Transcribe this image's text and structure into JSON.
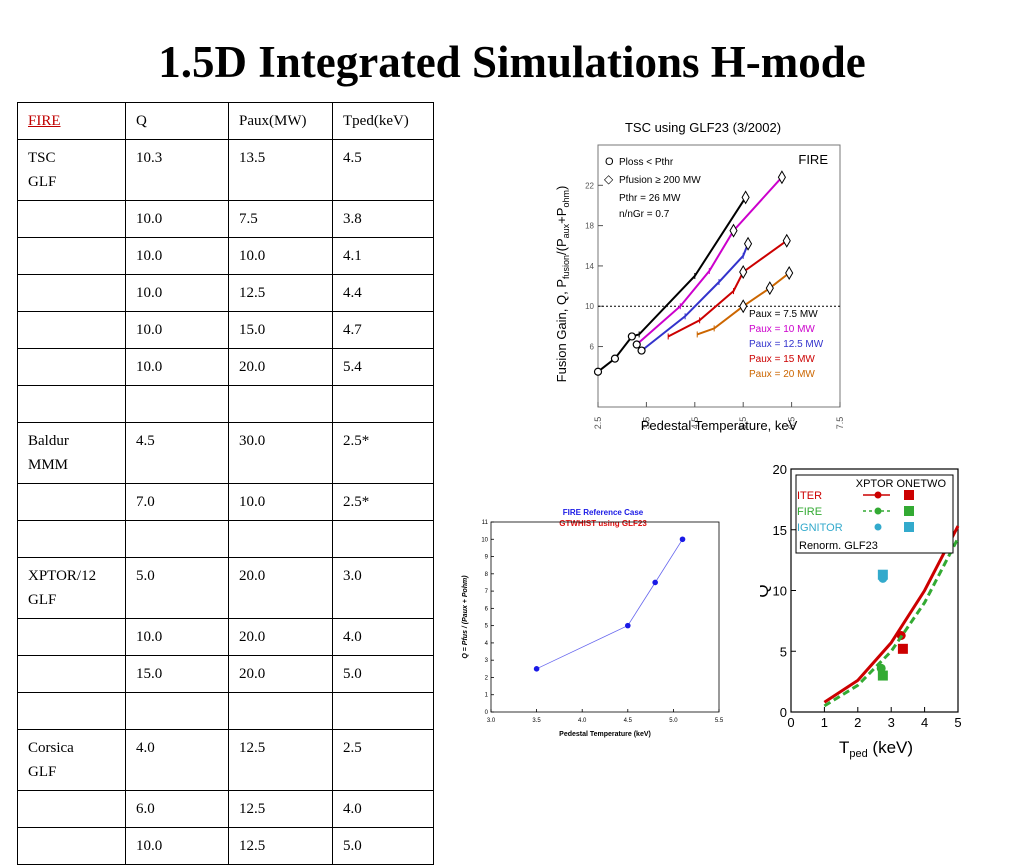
{
  "slide": {
    "title": "1.5D Integrated Simulations H-mode"
  },
  "table": {
    "headers": [
      "FIRE",
      "Q",
      "Paux(MW)",
      "Tped(keV)"
    ],
    "rows": [
      [
        [
          "TSC",
          "GLF"
        ],
        "10.3",
        "13.5",
        "4.5"
      ],
      [
        "",
        "10.0",
        "7.5",
        "3.8"
      ],
      [
        "",
        "10.0",
        "10.0",
        "4.1"
      ],
      [
        "",
        "10.0",
        "12.5",
        "4.4"
      ],
      [
        "",
        "10.0",
        "15.0",
        "4.7"
      ],
      [
        "",
        "10.0",
        "20.0",
        "5.4"
      ],
      [
        "",
        "",
        "",
        ""
      ],
      [
        [
          "Baldur",
          "MMM"
        ],
        "4.5",
        "30.0",
        "2.5*"
      ],
      [
        "",
        "7.0",
        "10.0",
        "2.5*"
      ],
      [
        "",
        "",
        "",
        ""
      ],
      [
        [
          "XPTOR/12",
          "GLF"
        ],
        "5.0",
        "20.0",
        "3.0"
      ],
      [
        "",
        "10.0",
        "20.0",
        "4.0"
      ],
      [
        "",
        "15.0",
        "20.0",
        "5.0"
      ],
      [
        "",
        "",
        "",
        ""
      ],
      [
        [
          "Corsica",
          "GLF"
        ],
        "4.0",
        "12.5",
        "2.5"
      ],
      [
        "",
        "6.0",
        "12.5",
        "4.0"
      ],
      [
        "",
        "10.0",
        "12.5",
        "5.0"
      ]
    ]
  },
  "chart_data": [
    {
      "type": "line",
      "title": "TSC using GLF23 (3/2002)",
      "xlabel": "Pedestal Temperature, keV",
      "ylabel": "Fusion Gain, Q, Pfusion/(Paux+Pohm)",
      "ylabel_parts": {
        "main": "Fusion Gain, Q, P",
        "s1": "fusion",
        "mid": "/(P",
        "s2": "aux",
        "plus": "+P",
        "s3": "ohm",
        "end": ")"
      },
      "xlim": [
        2.5,
        7.5
      ],
      "ylim": [
        0,
        26
      ],
      "xticks": [
        2.5,
        3.5,
        4.5,
        5.5,
        6.5,
        7.5
      ],
      "xtick_labels": [
        "2.5",
        "3.5",
        "4.5",
        "5.5",
        "6.5",
        "7.5"
      ],
      "yticks": [
        6,
        10,
        14,
        18,
        22
      ],
      "ytick_labels": [
        "6",
        "10",
        "14",
        "18",
        "22"
      ],
      "reference_line": 10,
      "device_label": "FIRE",
      "annotations": [
        "Ploss < Pthr",
        "Pfusion ≥ 200 MW",
        "Pthr = 26 MW",
        "n/nGr = 0.7"
      ],
      "legend_symbols": [
        "O",
        "◇"
      ],
      "legend_position": "right",
      "series": [
        {
          "name": "Paux = 7.5 MW",
          "color": "#000000",
          "x": [
            2.5,
            2.85,
            3.2,
            3.35,
            4.5,
            5.55
          ],
          "y": [
            3.5,
            4.8,
            7.0,
            7.2,
            13.0,
            20.8
          ],
          "circles": [
            [
              2.5,
              3.5
            ],
            [
              2.85,
              4.8
            ],
            [
              3.2,
              7.0
            ]
          ],
          "diamonds": [
            [
              5.55,
              20.8
            ]
          ]
        },
        {
          "name": "Paux = 10 MW",
          "color": "#cc00cc",
          "x": [
            3.3,
            4.2,
            4.8,
            5.3,
            6.3
          ],
          "y": [
            6.2,
            10.0,
            13.5,
            17.5,
            22.8
          ],
          "circles": [
            [
              3.3,
              6.2
            ]
          ],
          "diamonds": [
            [
              5.3,
              17.5
            ],
            [
              6.3,
              22.8
            ]
          ]
        },
        {
          "name": "Paux = 12.5 MW",
          "color": "#3333cc",
          "x": [
            3.4,
            4.3,
            5.0,
            5.5,
            5.6
          ],
          "y": [
            5.6,
            9.0,
            12.4,
            15.0,
            16.2
          ],
          "circles": [
            [
              3.4,
              5.6
            ]
          ],
          "diamonds": [
            [
              5.6,
              16.2
            ]
          ]
        },
        {
          "name": "Paux = 15 MW",
          "color": "#cc0000",
          "x": [
            3.95,
            4.6,
            5.3,
            5.5,
            6.4
          ],
          "y": [
            7.0,
            8.6,
            11.5,
            13.4,
            16.5
          ],
          "circles": [],
          "diamonds": [
            [
              5.5,
              13.4
            ],
            [
              6.4,
              16.5
            ]
          ]
        },
        {
          "name": "Paux = 20 MW",
          "color": "#cc6600",
          "x": [
            4.55,
            4.9,
            5.5,
            6.05,
            6.45
          ],
          "y": [
            7.2,
            7.8,
            10.0,
            11.8,
            13.3
          ],
          "circles": [],
          "diamonds": [
            [
              5.5,
              10.0
            ],
            [
              6.05,
              11.8
            ],
            [
              6.45,
              13.3
            ]
          ]
        }
      ]
    },
    {
      "type": "line",
      "title": "FIRE Reference Case",
      "subtitle": "GTWHIST using GLF23",
      "xlabel": "Pedestal Temperature (keV)",
      "ylabel": "Q = Pfus / (Paux + Pohm)",
      "xlim": [
        3.0,
        5.5
      ],
      "ylim": [
        0,
        11
      ],
      "xticks": [
        3.0,
        3.5,
        4.0,
        4.5,
        5.0,
        5.5
      ],
      "xtick_labels": [
        "3.0",
        "3.5",
        "4.0",
        "4.5",
        "5.0",
        "5.5"
      ],
      "yticks": [
        0,
        1,
        2,
        3,
        4,
        5,
        6,
        7,
        8,
        9,
        10,
        11
      ],
      "ytick_labels": [
        "0",
        "1",
        "2",
        "3",
        "4",
        "5",
        "6",
        "7",
        "8",
        "9",
        "10",
        "11"
      ],
      "title_color": "#1a1ae6",
      "subtitle_color": "#dd1111",
      "series": [
        {
          "color": "#6666ee",
          "x": [
            3.5,
            4.5,
            4.8,
            5.1
          ],
          "y": [
            2.5,
            5.0,
            7.5,
            10.0
          ]
        }
      ]
    },
    {
      "type": "line",
      "xlabel": "T",
      "xlabel_sub": "ped",
      "xlabel_unit": " (keV)",
      "ylabel": "Q",
      "xlim": [
        0,
        5
      ],
      "ylim": [
        0,
        20
      ],
      "xticks": [
        0,
        1,
        2,
        3,
        4,
        5
      ],
      "xtick_labels": [
        "0",
        "1",
        "2",
        "3",
        "4",
        "5"
      ],
      "yticks": [
        0,
        5,
        10,
        15,
        20
      ],
      "ytick_labels": [
        "0",
        "5",
        "10",
        "15",
        "20"
      ],
      "legend_header": "XPTOR ONETWO",
      "legend_note": "Renorm. GLF23",
      "legend_position": "top-left",
      "series": [
        {
          "name": "ITER",
          "color": "#cc0000",
          "dash": false,
          "x": [
            1.0,
            2.0,
            3.0,
            4.0,
            5.0
          ],
          "y": [
            0.8,
            2.6,
            5.7,
            10.0,
            15.3
          ],
          "xptor": [
            [
              3.3,
              6.3
            ]
          ],
          "onetwo": [
            [
              3.35,
              5.2
            ]
          ]
        },
        {
          "name": "FIRE",
          "color": "#33aa33",
          "dash": true,
          "x": [
            1.0,
            2.0,
            3.0,
            4.0,
            5.0
          ],
          "y": [
            0.5,
            2.2,
            5.0,
            9.0,
            14.3
          ],
          "xptor": [
            [
              2.7,
              3.6
            ]
          ],
          "onetwo": [
            [
              2.75,
              3.0
            ]
          ]
        },
        {
          "name": "IGNITOR",
          "color": "#33aacc",
          "dash": false,
          "x": [],
          "y": [],
          "xptor": [
            [
              2.75,
              11.0
            ]
          ],
          "onetwo": [
            [
              2.75,
              11.3
            ]
          ]
        }
      ]
    }
  ]
}
